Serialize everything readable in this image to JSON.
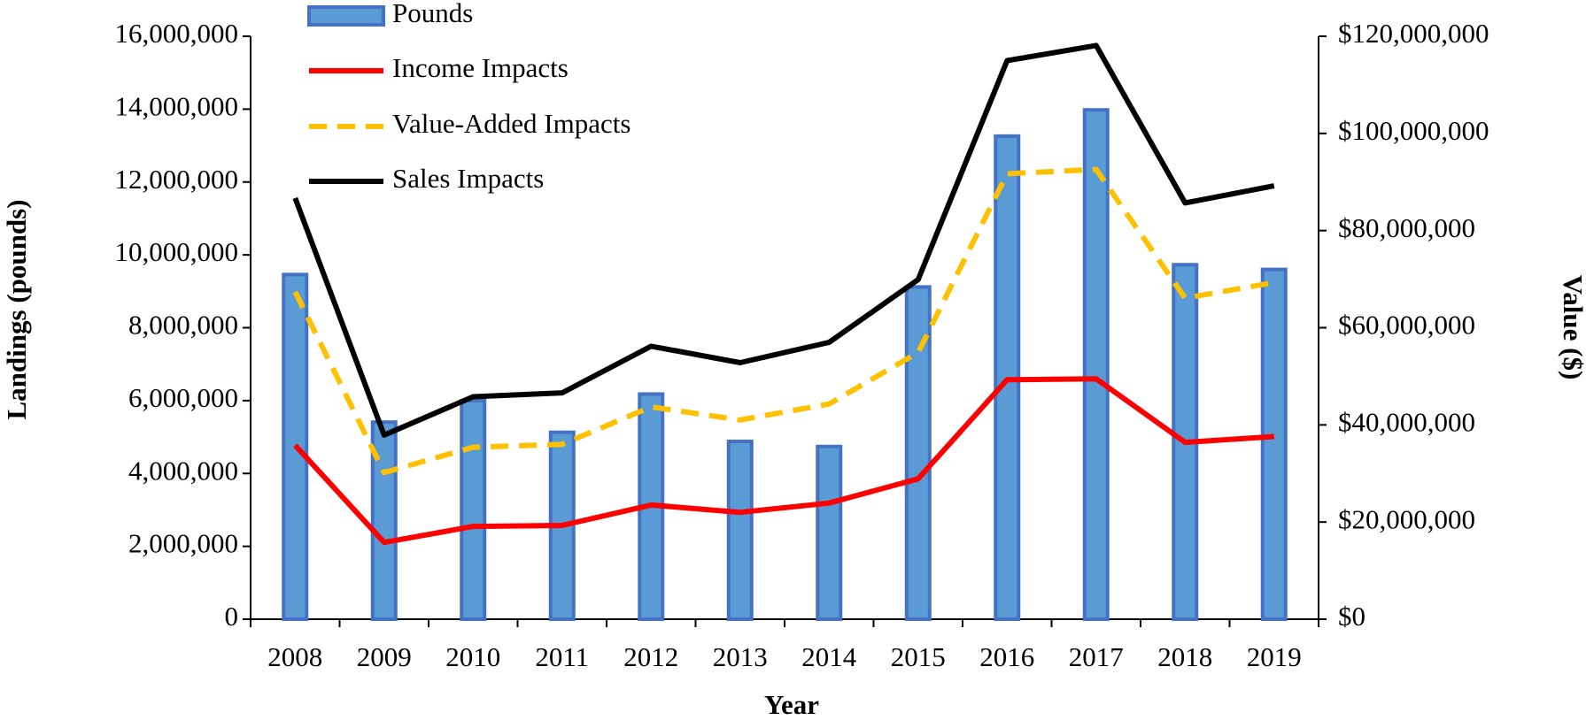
{
  "chart_data": {
    "type": "bar_line_dual_axis",
    "x_label": "Year",
    "y_label": "Landings (pounds)",
    "y2_label": "Value ($)",
    "categories": [
      "2008",
      "2009",
      "2010",
      "2011",
      "2012",
      "2013",
      "2014",
      "2015",
      "2016",
      "2017",
      "2018",
      "2019"
    ],
    "series": [
      {
        "name": "Pounds",
        "type": "bar",
        "axis": "y",
        "color": "#5b9bd5",
        "values": [
          9460000,
          5410000,
          6000000,
          5130000,
          6180000,
          4880000,
          4740000,
          9120000,
          13260000,
          13980000,
          9730000,
          9600000
        ]
      },
      {
        "name": "Income Impacts",
        "type": "line",
        "axis": "y2",
        "color": "#ff0000",
        "values": [
          35800000,
          15800000,
          19100000,
          19300000,
          23500000,
          22000000,
          23900000,
          28900000,
          49300000,
          49500000,
          36400000,
          37600000
        ]
      },
      {
        "name": "Value-Added Impacts",
        "type": "line",
        "dashed": true,
        "axis": "y2",
        "color": "#ffc000",
        "values": [
          67400000,
          30200000,
          35400000,
          36000000,
          43700000,
          41000000,
          44300000,
          54900000,
          91700000,
          92600000,
          66100000,
          69300000
        ]
      },
      {
        "name": "Sales Impacts",
        "type": "line",
        "axis": "y2",
        "color": "#000000",
        "values": [
          86700000,
          37900000,
          45800000,
          46600000,
          56200000,
          52800000,
          57000000,
          69900000,
          115000000,
          118100000,
          85700000,
          89200000
        ]
      }
    ],
    "ylim": [
      0,
      16000000
    ],
    "yticks": [
      0,
      {
        "value": 2000000,
        "label": "2,000,000"
      },
      {
        "value": 4000000,
        "label": "4,000,000"
      },
      {
        "value": 6000000,
        "label": "6,000,000"
      },
      {
        "value": 8000000,
        "label": "8,000,000"
      },
      {
        "value": 10000000,
        "label": "10,000,000"
      },
      {
        "value": 12000000,
        "label": "12,000,000"
      },
      {
        "value": 14000000,
        "label": "14,000,000"
      },
      {
        "value": 16000000,
        "label": "16,000,000"
      }
    ],
    "y2lim": [
      0,
      120000000
    ],
    "y2ticks": [
      {
        "value": 0,
        "label": "$0"
      },
      {
        "value": 20000000,
        "label": "$20,000,000"
      },
      {
        "value": 40000000,
        "label": "$40,000,000"
      },
      {
        "value": 60000000,
        "label": "$60,000,000"
      },
      {
        "value": 80000000,
        "label": "$80,000,000"
      },
      {
        "value": 100000000,
        "label": "$100,000,000"
      },
      {
        "value": 120000000,
        "label": "$120,000,000"
      }
    ],
    "legend": "top-left"
  }
}
